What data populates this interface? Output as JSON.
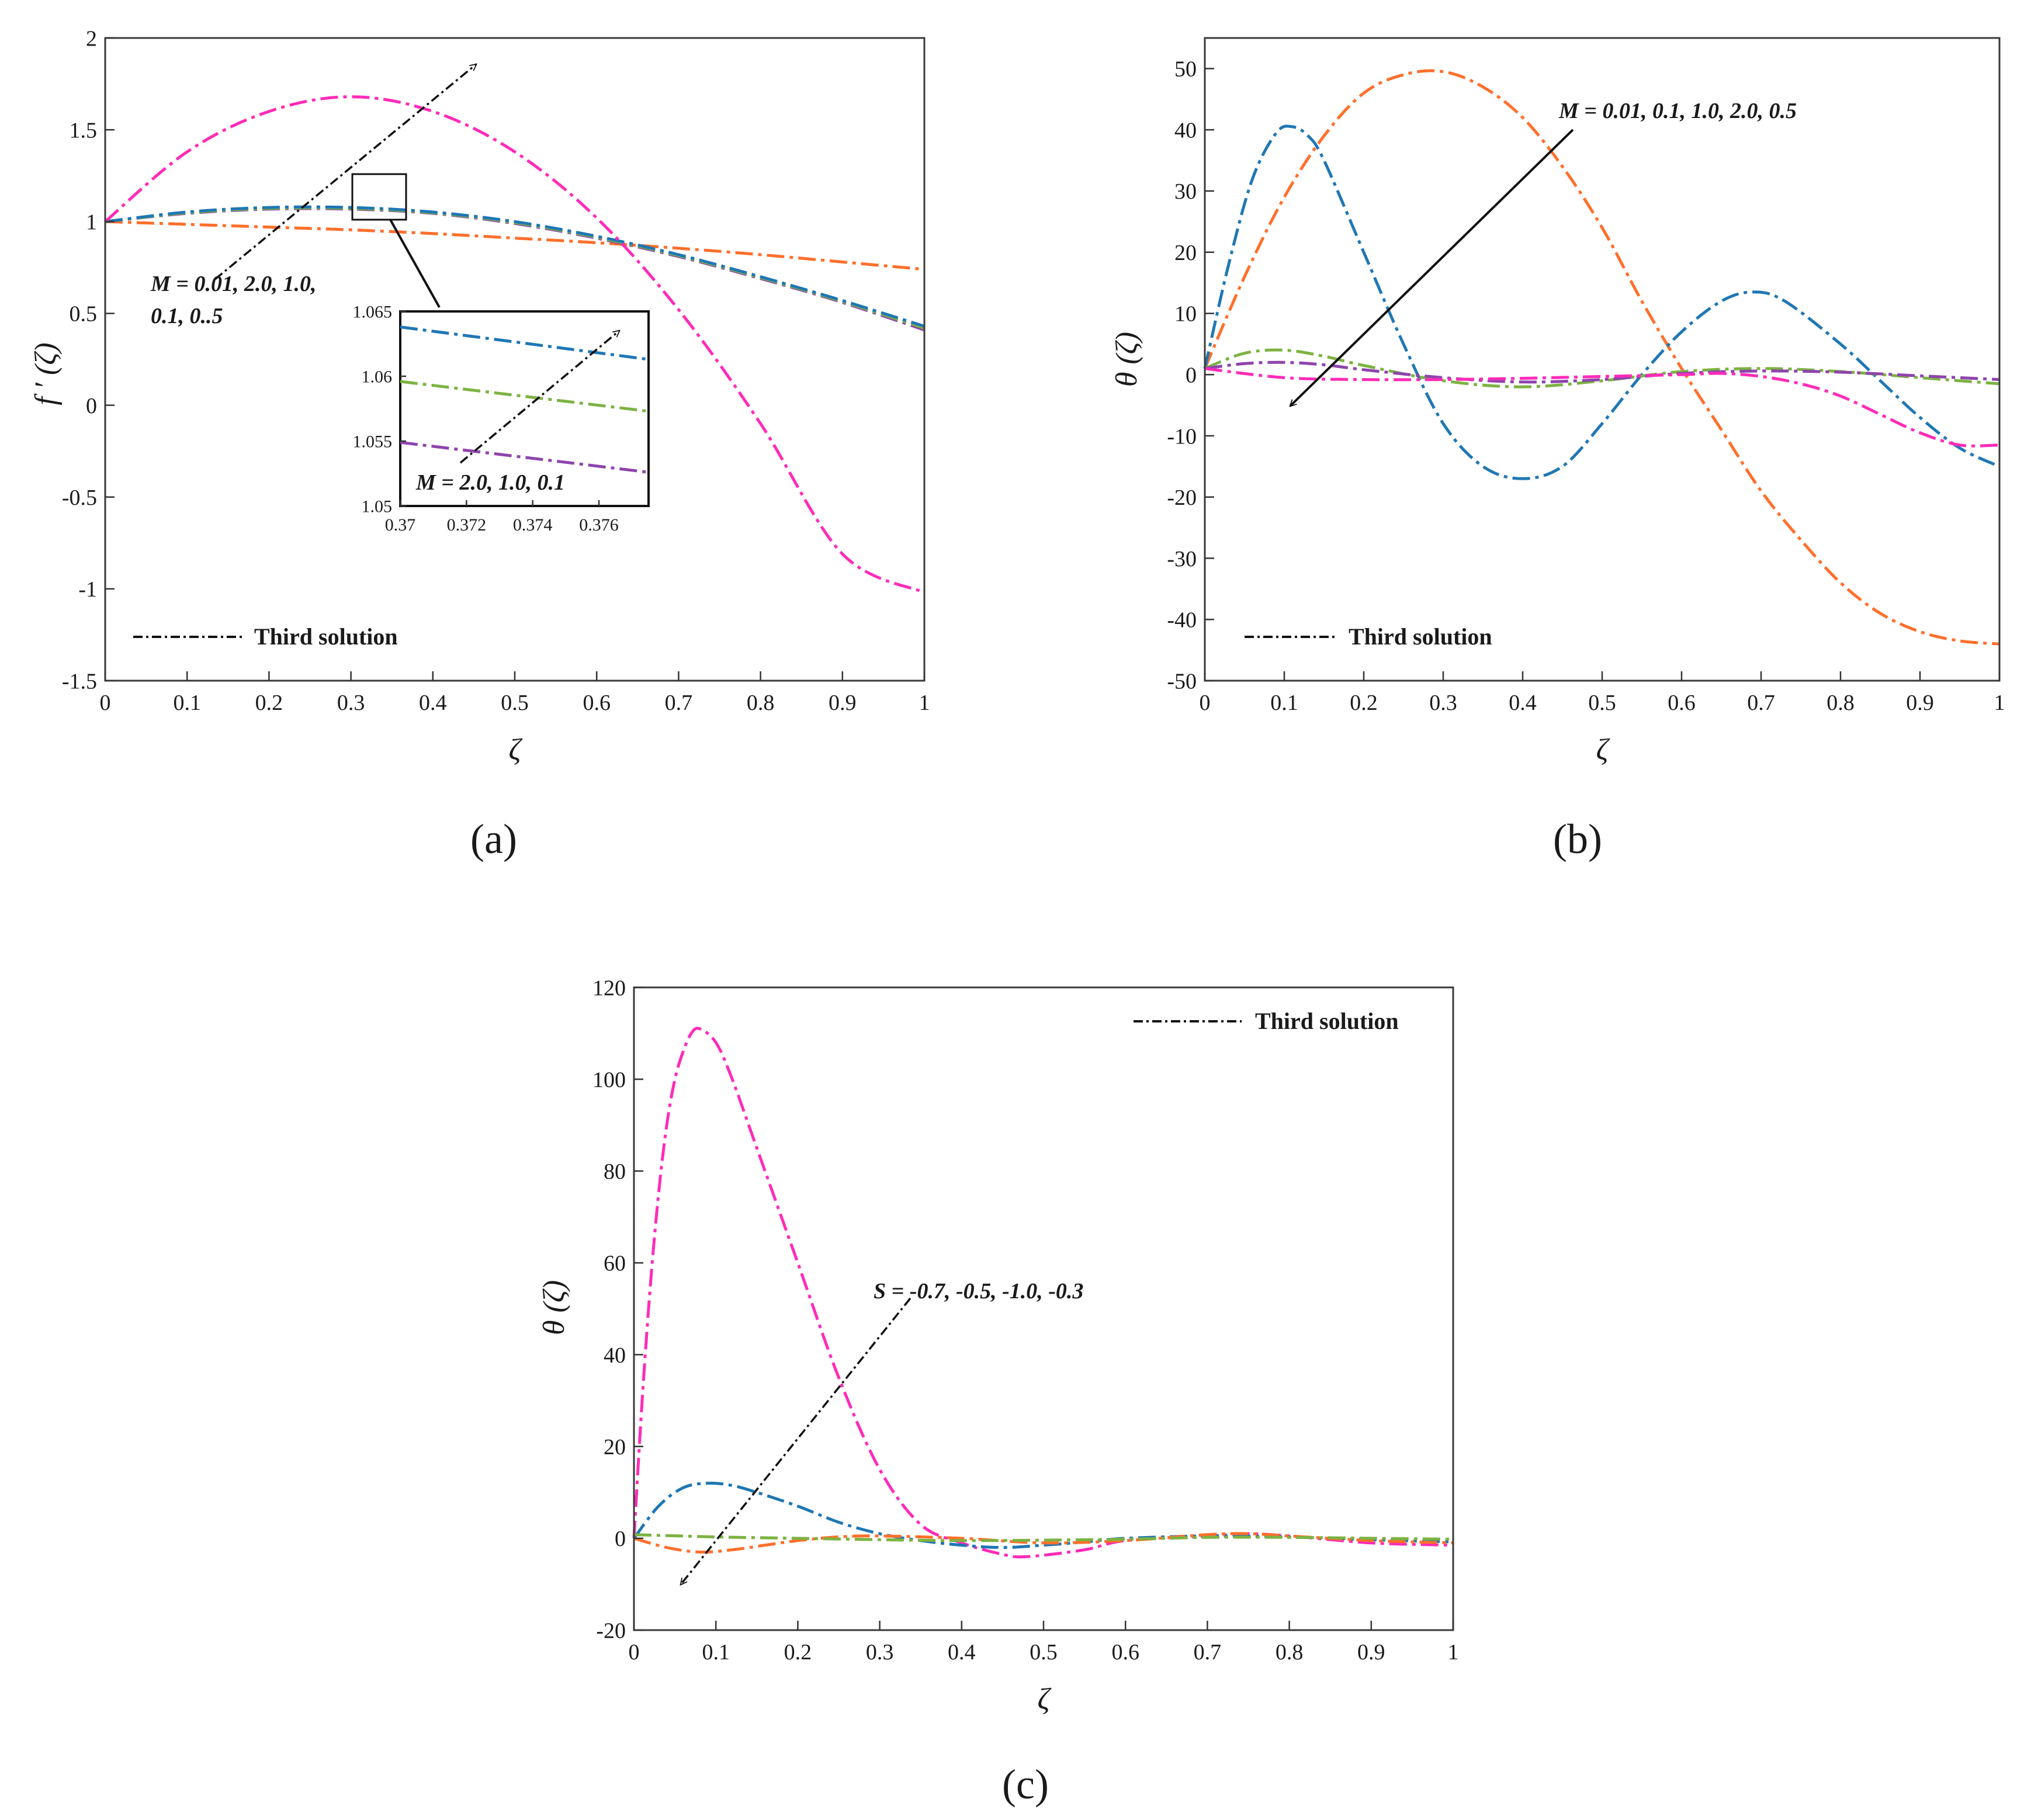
{
  "colors": {
    "blue": "#1f77b4",
    "orange": "#ff6f2b",
    "magenta": "#ff2bb8",
    "green": "#7cb342",
    "purple": "#8e44ad",
    "black": "#111111"
  },
  "chart_data": [
    {
      "id": "a",
      "type": "line",
      "panel_label": "(a)",
      "xlabel": "ζ",
      "ylabel": "f ′ (ζ)",
      "xlim": [
        0,
        1
      ],
      "ylim": [
        -1.5,
        2
      ],
      "xticks": [
        0,
        0.1,
        0.2,
        0.3,
        0.4,
        0.5,
        0.6,
        0.7,
        0.8,
        0.9,
        1
      ],
      "xtick_labels": [
        "0",
        "0.1",
        "0.2",
        "0.3",
        "0.4",
        "0.5",
        "0.6",
        "0.7",
        "0.8",
        "0.9",
        "1"
      ],
      "yticks": [
        -1.5,
        -1,
        -0.5,
        0,
        0.5,
        1,
        1.5,
        2
      ],
      "ytick_labels": [
        "-1.5",
        "-1",
        "-0.5",
        "0",
        "0.5",
        "1",
        "1.5",
        "2"
      ],
      "legend": {
        "label": "Third solution",
        "position": "bottom-left"
      },
      "annotation": {
        "lines": [
          "M = 0.01, 2.0, 1.0,",
          "0.1, 0..5"
        ]
      },
      "series": [
        {
          "name": "M = 0.01",
          "color": "orange",
          "x": [
            0,
            0.1,
            0.2,
            0.3,
            0.4,
            0.5,
            0.6,
            0.7,
            0.8,
            0.9,
            1
          ],
          "y": [
            1.0,
            0.985,
            0.97,
            0.955,
            0.935,
            0.91,
            0.885,
            0.855,
            0.82,
            0.78,
            0.74
          ]
        },
        {
          "name": "M = 2.0",
          "color": "purple",
          "x": [
            0,
            0.1,
            0.2,
            0.3,
            0.4,
            0.5,
            0.6,
            0.7,
            0.8,
            0.9,
            1
          ],
          "y": [
            1.0,
            1.045,
            1.068,
            1.068,
            1.045,
            0.99,
            0.91,
            0.81,
            0.69,
            0.56,
            0.41
          ]
        },
        {
          "name": "M = 1.0",
          "color": "green",
          "x": [
            0,
            0.1,
            0.2,
            0.3,
            0.4,
            0.5,
            0.6,
            0.7,
            0.8,
            0.9,
            1
          ],
          "y": [
            1.0,
            1.048,
            1.072,
            1.072,
            1.048,
            0.995,
            0.915,
            0.815,
            0.695,
            0.565,
            0.42
          ]
        },
        {
          "name": "M = 0.1",
          "color": "blue",
          "x": [
            0,
            0.1,
            0.2,
            0.3,
            0.4,
            0.5,
            0.6,
            0.7,
            0.8,
            0.9,
            1
          ],
          "y": [
            1.0,
            1.052,
            1.077,
            1.077,
            1.052,
            1.0,
            0.92,
            0.82,
            0.7,
            0.57,
            0.43
          ]
        },
        {
          "name": "M = 0.5",
          "color": "magenta",
          "x": [
            0,
            0.1,
            0.2,
            0.3,
            0.4,
            0.5,
            0.6,
            0.7,
            0.8,
            0.9,
            1
          ],
          "y": [
            1.0,
            1.38,
            1.6,
            1.68,
            1.6,
            1.38,
            1.02,
            0.52,
            -0.1,
            -0.81,
            -1.02
          ]
        }
      ],
      "inset": {
        "xlim": [
          0.37,
          0.3775
        ],
        "ylim": [
          1.05,
          1.065
        ],
        "xticks": [
          0.37,
          0.372,
          0.374,
          0.376
        ],
        "xtick_labels": [
          "0.37",
          "0.372",
          "0.374",
          "0.376"
        ],
        "yticks": [
          1.05,
          1.055,
          1.06,
          1.065
        ],
        "ytick_labels": [
          "1.05",
          "1.055",
          "1.06",
          "1.065"
        ],
        "annotation": "M = 2.0, 1.0, 0.1",
        "series": [
          {
            "name": "M = 0.1",
            "color": "blue",
            "x": [
              0.37,
              0.3775
            ],
            "y": [
              1.0638,
              1.0613
            ]
          },
          {
            "name": "M = 1.0",
            "color": "green",
            "x": [
              0.37,
              0.3775
            ],
            "y": [
              1.0596,
              1.0573
            ]
          },
          {
            "name": "M = 2.0",
            "color": "purple",
            "x": [
              0.37,
              0.3775
            ],
            "y": [
              1.0549,
              1.0526
            ]
          }
        ]
      }
    },
    {
      "id": "b",
      "type": "line",
      "panel_label": "(b)",
      "xlabel": "ζ",
      "ylabel": "θ (ζ)",
      "xlim": [
        0,
        1
      ],
      "ylim": [
        -50,
        55
      ],
      "xticks": [
        0,
        0.1,
        0.2,
        0.3,
        0.4,
        0.5,
        0.6,
        0.7,
        0.8,
        0.9,
        1
      ],
      "xtick_labels": [
        "0",
        "0.1",
        "0.2",
        "0.3",
        "0.4",
        "0.5",
        "0.6",
        "0.7",
        "0.8",
        "0.9",
        "1"
      ],
      "yticks": [
        -50,
        -40,
        -30,
        -20,
        -10,
        0,
        10,
        20,
        30,
        40,
        50
      ],
      "ytick_labels": [
        "-50",
        "-40",
        "-30",
        "-20",
        "-10",
        "0",
        "10",
        "20",
        "30",
        "40",
        "50"
      ],
      "legend": {
        "label": "Third solution",
        "position": "bottom-left"
      },
      "annotation": {
        "lines": [
          "M = 0.01, 0.1, 1.0, 2.0, 0.5"
        ]
      },
      "series": [
        {
          "name": "M = 0.01",
          "color": "orange",
          "x": [
            0,
            0.05,
            0.1,
            0.15,
            0.2,
            0.25,
            0.3,
            0.35,
            0.4,
            0.45,
            0.5,
            0.55,
            0.6,
            0.65,
            0.7,
            0.75,
            0.8,
            0.85,
            0.9,
            0.95,
            1
          ],
          "y": [
            1,
            16,
            29,
            39,
            46,
            49,
            49.5,
            47,
            42,
            34,
            24,
            12,
            1,
            -9,
            -19,
            -27,
            -34,
            -39,
            -42,
            -43.5,
            -44
          ]
        },
        {
          "name": "M = 0.1",
          "color": "blue",
          "x": [
            0,
            0.03,
            0.06,
            0.09,
            0.11,
            0.13,
            0.15,
            0.2,
            0.25,
            0.3,
            0.35,
            0.4,
            0.45,
            0.5,
            0.55,
            0.6,
            0.65,
            0.69,
            0.73,
            0.8,
            0.85,
            0.9,
            0.95,
            1
          ],
          "y": [
            1,
            18,
            32,
            39.5,
            40.5,
            39,
            35,
            20,
            5,
            -8,
            -15,
            -17,
            -15,
            -8,
            0,
            7,
            12,
            13.5,
            12,
            5,
            -1,
            -7,
            -12,
            -15
          ]
        },
        {
          "name": "M = 1.0",
          "color": "green",
          "x": [
            0,
            0.05,
            0.1,
            0.15,
            0.2,
            0.3,
            0.4,
            0.5,
            0.6,
            0.7,
            0.8,
            0.9,
            1
          ],
          "y": [
            1,
            3.5,
            4,
            3,
            1.5,
            -1,
            -2,
            -1,
            0.5,
            1,
            0.5,
            -0.5,
            -1.5
          ]
        },
        {
          "name": "M = 2.0",
          "color": "purple",
          "x": [
            0,
            0.05,
            0.1,
            0.15,
            0.2,
            0.3,
            0.4,
            0.5,
            0.6,
            0.7,
            0.8,
            0.9,
            1
          ],
          "y": [
            1,
            1.8,
            2,
            1.6,
            0.8,
            -0.5,
            -1.2,
            -0.8,
            0.2,
            0.6,
            0.4,
            -0.2,
            -0.8
          ]
        },
        {
          "name": "M = 0.5",
          "color": "magenta",
          "x": [
            0,
            0.1,
            0.2,
            0.3,
            0.4,
            0.5,
            0.6,
            0.65,
            0.7,
            0.75,
            0.8,
            0.85,
            0.9,
            0.95,
            1
          ],
          "y": [
            1,
            -0.5,
            -0.8,
            -0.8,
            -0.6,
            -0.3,
            0,
            0.2,
            -0.3,
            -1.5,
            -3.5,
            -6.5,
            -9.5,
            -11.5,
            -11.5
          ]
        }
      ]
    },
    {
      "id": "c",
      "type": "line",
      "panel_label": "(c)",
      "xlabel": "ζ",
      "ylabel": "θ (ζ)",
      "xlim": [
        0,
        1
      ],
      "ylim": [
        -20,
        120
      ],
      "xticks": [
        0,
        0.1,
        0.2,
        0.3,
        0.4,
        0.5,
        0.6,
        0.7,
        0.8,
        0.9,
        1
      ],
      "xtick_labels": [
        "0",
        "0.1",
        "0.2",
        "0.3",
        "0.4",
        "0.5",
        "0.6",
        "0.7",
        "0.8",
        "0.9",
        "1"
      ],
      "yticks": [
        -20,
        0,
        20,
        40,
        60,
        80,
        100,
        120
      ],
      "ytick_labels": [
        "-20",
        "0",
        "20",
        "40",
        "60",
        "80",
        "100",
        "120"
      ],
      "legend": {
        "label": "Third solution",
        "position": "top-right"
      },
      "annotation": {
        "lines": [
          "S = -0.7, -0.5, -1.0, -0.3"
        ]
      },
      "series": [
        {
          "name": "S = -0.3",
          "color": "magenta",
          "x": [
            0,
            0.01,
            0.02,
            0.03,
            0.04,
            0.05,
            0.06,
            0.07,
            0.08,
            0.1,
            0.12,
            0.15,
            0.2,
            0.25,
            0.3,
            0.35,
            0.4,
            0.45,
            0.48,
            0.55,
            0.6,
            0.7,
            0.75,
            0.8,
            0.9,
            1
          ],
          "y": [
            0,
            30,
            55,
            75,
            90,
            100,
            106,
            110,
            111,
            108,
            100,
            85,
            60,
            35,
            15,
            3,
            -1,
            -3.5,
            -4,
            -2.5,
            -0.5,
            0.5,
            1,
            0.5,
            -1,
            -1.5
          ]
        },
        {
          "name": "S = -0.5",
          "color": "blue",
          "x": [
            0,
            0.03,
            0.06,
            0.09,
            0.12,
            0.15,
            0.2,
            0.25,
            0.3,
            0.35,
            0.4,
            0.45,
            0.5,
            0.55,
            0.6,
            0.7,
            0.8,
            0.9,
            1
          ],
          "y": [
            0,
            7,
            11,
            12,
            11.5,
            10,
            7,
            3.5,
            1,
            -0.5,
            -1.5,
            -2,
            -1.5,
            -0.8,
            0,
            0.5,
            0.3,
            -0.3,
            -0.8
          ]
        },
        {
          "name": "S = -1.0",
          "color": "orange",
          "x": [
            0,
            0.04,
            0.08,
            0.12,
            0.16,
            0.2,
            0.25,
            0.3,
            0.4,
            0.5,
            0.6,
            0.7,
            0.75,
            0.8,
            0.9,
            1
          ],
          "y": [
            0,
            -2,
            -3,
            -2.5,
            -1.5,
            -0.5,
            0.3,
            0.5,
            0,
            -1,
            -0.5,
            0.8,
            1,
            0.5,
            -0.5,
            -1
          ]
        },
        {
          "name": "S = -0.7",
          "color": "green",
          "x": [
            0,
            0.1,
            0.2,
            0.3,
            0.4,
            0.5,
            0.6,
            0.7,
            0.8,
            0.9,
            1
          ],
          "y": [
            0.8,
            0.3,
            0,
            -0.3,
            -0.5,
            -0.4,
            -0.2,
            0.2,
            0.2,
            0,
            -0.2
          ]
        }
      ]
    }
  ]
}
